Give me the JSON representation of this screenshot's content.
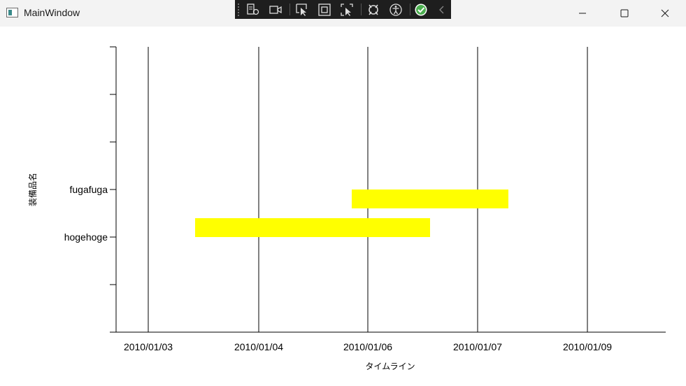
{
  "window": {
    "title": "MainWindow",
    "icon": "app-window-icon"
  },
  "debug_toolbar": {
    "items": [
      "visual-tree-icon",
      "record-icon",
      "select-element-icon",
      "display-layout-adorners-icon",
      "track-focus-icon",
      "hot-reload-icon",
      "accessibility-icon",
      "binding-check-icon",
      "collapse-chevron-icon"
    ]
  },
  "chart_data": {
    "type": "bar",
    "orientation": "horizontal-timeline",
    "xlabel": "タイムライン",
    "ylabel": "装備品名",
    "bar_color": "#ffff00",
    "x_ticks": [
      "2010/01/03",
      "2010/01/04",
      "2010/01/06",
      "2010/01/07",
      "2010/01/09"
    ],
    "y_ticks": [
      "fugafuga",
      "hogehoge"
    ],
    "y_slots": 6,
    "series": [
      {
        "category": "fugafuga",
        "start": "2010/01/06",
        "end": "2010/01/07"
      },
      {
        "category": "hogehoge",
        "start": "2010/01/03",
        "end": "2010/01/06"
      }
    ]
  }
}
